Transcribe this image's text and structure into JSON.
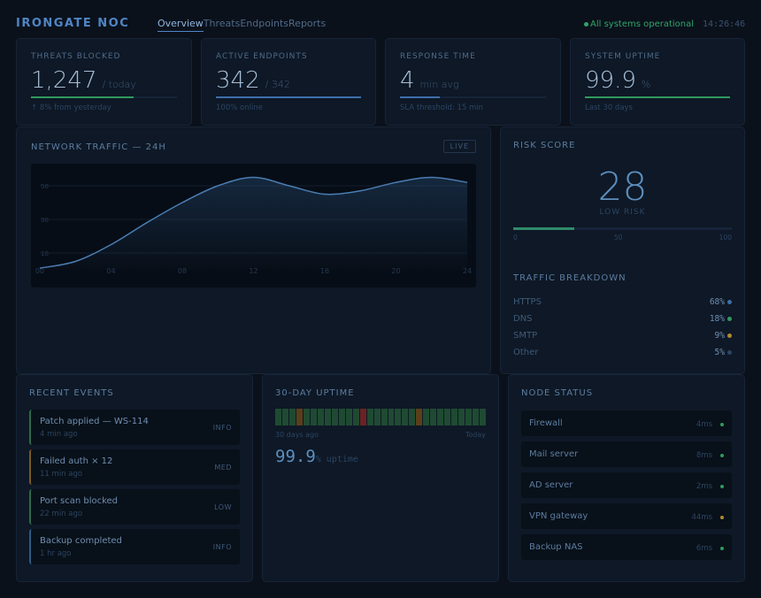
{
  "header": {
    "brand": "IRONGATE NOC",
    "tabs": [
      {
        "label": "Overview"
      },
      {
        "label": "Threats"
      },
      {
        "label": "Endpoints"
      },
      {
        "label": "Reports"
      }
    ],
    "status": "All systems operational",
    "clock": "14:26:46"
  },
  "kpis": [
    {
      "label": "THREATS BLOCKED",
      "value": "1,247",
      "unit": "/ today",
      "note": "↑ 8% from yesterday",
      "progress": 0.7,
      "color": "#2f9a5e"
    },
    {
      "label": "ACTIVE ENDPOINTS",
      "value": "342",
      "unit": "/ 342",
      "note": "100% online",
      "progress": 1.0,
      "color": "#3d6fa8"
    },
    {
      "label": "RESPONSE TIME",
      "value": "4",
      "unit": "min avg",
      "note": "SLA threshold: 15 min",
      "progress": 0.27,
      "color": "#3d6fa8"
    },
    {
      "label": "SYSTEM UPTIME",
      "value": "99.9",
      "unit": "%",
      "note": "Last 30 days",
      "progress": 0.999,
      "color": "#2f9a5e"
    }
  ],
  "traffic": {
    "title": "NETWORK TRAFFIC — 24H",
    "live_label": "LIVE"
  },
  "chart_data": {
    "type": "area",
    "title": "NETWORK TRAFFIC — 24H",
    "x": [
      0,
      2,
      4,
      6,
      8,
      10,
      12,
      14,
      16,
      18,
      20,
      22,
      24
    ],
    "values": [
      1,
      5,
      15,
      28,
      40,
      50,
      55,
      50,
      45,
      47,
      52,
      55,
      52
    ],
    "x_ticks": [
      "00",
      "04",
      "08",
      "12",
      "16",
      "20",
      "24"
    ],
    "x_tick_values": [
      0,
      4,
      8,
      12,
      16,
      20,
      24
    ],
    "y_ticks": [
      "10",
      "30",
      "50"
    ],
    "y_tick_values": [
      10,
      30,
      50
    ],
    "xlim": [
      0,
      24
    ],
    "ylim": [
      0,
      60
    ],
    "grid": true
  },
  "risk": {
    "title": "RISK SCORE",
    "score": "28",
    "level": "LOW RISK",
    "fraction": 0.28,
    "ticks": [
      "0",
      "50",
      "100"
    ]
  },
  "breakdown": {
    "title": "TRAFFIC BREAKDOWN",
    "items": [
      {
        "name": "HTTPS",
        "pct": "68%",
        "color": "#3d6fa8"
      },
      {
        "name": "DNS",
        "pct": "18%",
        "color": "#2f9a5e"
      },
      {
        "name": "SMTP",
        "pct": "9%",
        "color": "#b08a2e"
      },
      {
        "name": "Other",
        "pct": "5%",
        "color": "#2c4563"
      }
    ]
  },
  "events": {
    "title": "RECENT EVENTS",
    "items": [
      {
        "title": "Patch applied — WS-114",
        "time": "4 min ago",
        "severity": "INFO",
        "color": "#2f6a48"
      },
      {
        "title": "Failed auth × 12",
        "time": "11 min ago",
        "severity": "MED",
        "color": "#7a5a24"
      },
      {
        "title": "Port scan blocked",
        "time": "22 min ago",
        "severity": "LOW",
        "color": "#2f6a48"
      },
      {
        "title": "Backup completed",
        "time": "1 hr ago",
        "severity": "INFO",
        "color": "#2f5a86"
      }
    ]
  },
  "uptime": {
    "title": "30-DAY UPTIME",
    "start_label": "30 days ago",
    "end_label": "Today",
    "value": "99.9",
    "unit": "% uptime",
    "days": [
      "ok",
      "ok",
      "ok",
      "warn",
      "ok",
      "ok",
      "ok",
      "ok",
      "ok",
      "ok",
      "ok",
      "ok",
      "down",
      "ok",
      "ok",
      "ok",
      "ok",
      "ok",
      "ok",
      "ok",
      "warn",
      "ok",
      "ok",
      "ok",
      "ok",
      "ok",
      "ok",
      "ok",
      "ok",
      "ok"
    ],
    "colors": {
      "ok": "#1f4a32",
      "warn": "#5a3f1a",
      "down": "#6a2323"
    }
  },
  "nodes": {
    "title": "NODE STATUS",
    "items": [
      {
        "name": "Firewall",
        "latency": "4ms",
        "color": "#2f9a5e"
      },
      {
        "name": "Mail server",
        "latency": "8ms",
        "color": "#2f9a5e"
      },
      {
        "name": "AD server",
        "latency": "2ms",
        "color": "#2f9a5e"
      },
      {
        "name": "VPN gateway",
        "latency": "44ms",
        "color": "#b08a2e"
      },
      {
        "name": "Backup NAS",
        "latency": "6ms",
        "color": "#2f9a5e"
      }
    ]
  }
}
